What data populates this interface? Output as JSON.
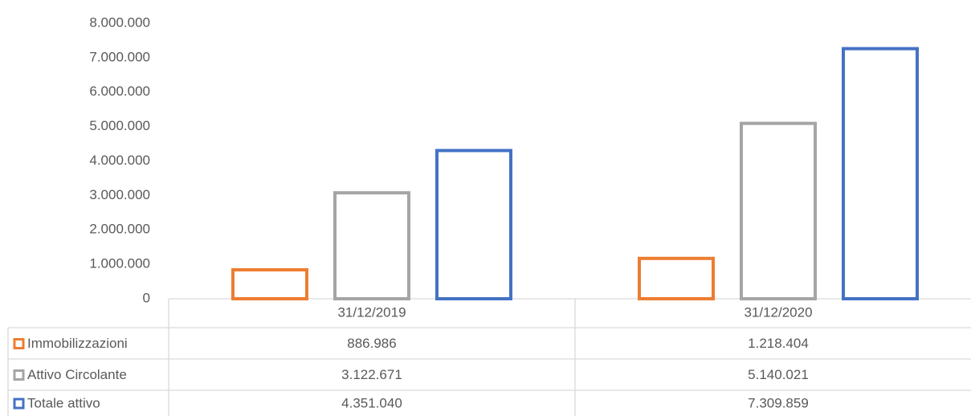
{
  "chart_data": {
    "type": "bar",
    "categories": [
      "31/12/2019",
      "31/12/2020"
    ],
    "series": [
      {
        "name": "Immobilizzazioni",
        "color": "#ed7d31",
        "values": [
          886986,
          1218404
        ],
        "value_labels": [
          "886.986",
          "1.218.404"
        ]
      },
      {
        "name": "Attivo Circolante",
        "color": "#a5a5a5",
        "values": [
          3122671,
          5140021
        ],
        "value_labels": [
          "3.122.671",
          "5.140.021"
        ]
      },
      {
        "name": "Totale attivo",
        "color": "#4472c4",
        "values": [
          4351040,
          7309859
        ],
        "value_labels": [
          "4.351.040",
          "7.309.859"
        ]
      }
    ],
    "ylim": [
      0,
      8000000
    ],
    "yticks": [
      0,
      {
        "value": 1000000,
        "label": "1.000.000"
      },
      {
        "value": 2000000,
        "label": "2.000.000"
      },
      {
        "value": 3000000,
        "label": "3.000.000"
      },
      {
        "value": 4000000,
        "label": "4.000.000"
      },
      {
        "value": 5000000,
        "label": "5.000.000"
      },
      {
        "value": 6000000,
        "label": "6.000.000"
      },
      {
        "value": 7000000,
        "label": "7.000.000"
      },
      {
        "value": 8000000,
        "label": "8.000.000"
      }
    ],
    "grid": false,
    "bar_style": "outline"
  }
}
